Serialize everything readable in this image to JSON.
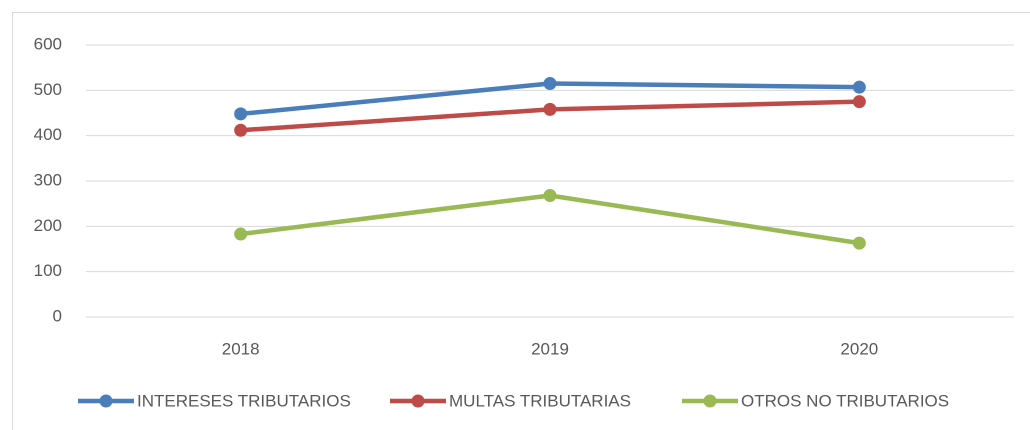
{
  "chart_data": {
    "type": "line",
    "categories": [
      "2018",
      "2019",
      "2020"
    ],
    "series": [
      {
        "name": "INTERESES TRIBUTARIOS",
        "color": "#4a7ebb",
        "values": [
          448,
          515,
          507
        ]
      },
      {
        "name": "MULTAS TRIBUTARIAS",
        "color": "#be4b48",
        "values": [
          412,
          458,
          475
        ]
      },
      {
        "name": "OTROS NO TRIBUTARIOS",
        "color": "#98b954",
        "values": [
          183,
          268,
          163
        ]
      }
    ],
    "ylim": [
      0,
      600
    ],
    "yticks": [
      0,
      100,
      200,
      300,
      400,
      500,
      600
    ],
    "grid": true,
    "legend": "bottom"
  }
}
